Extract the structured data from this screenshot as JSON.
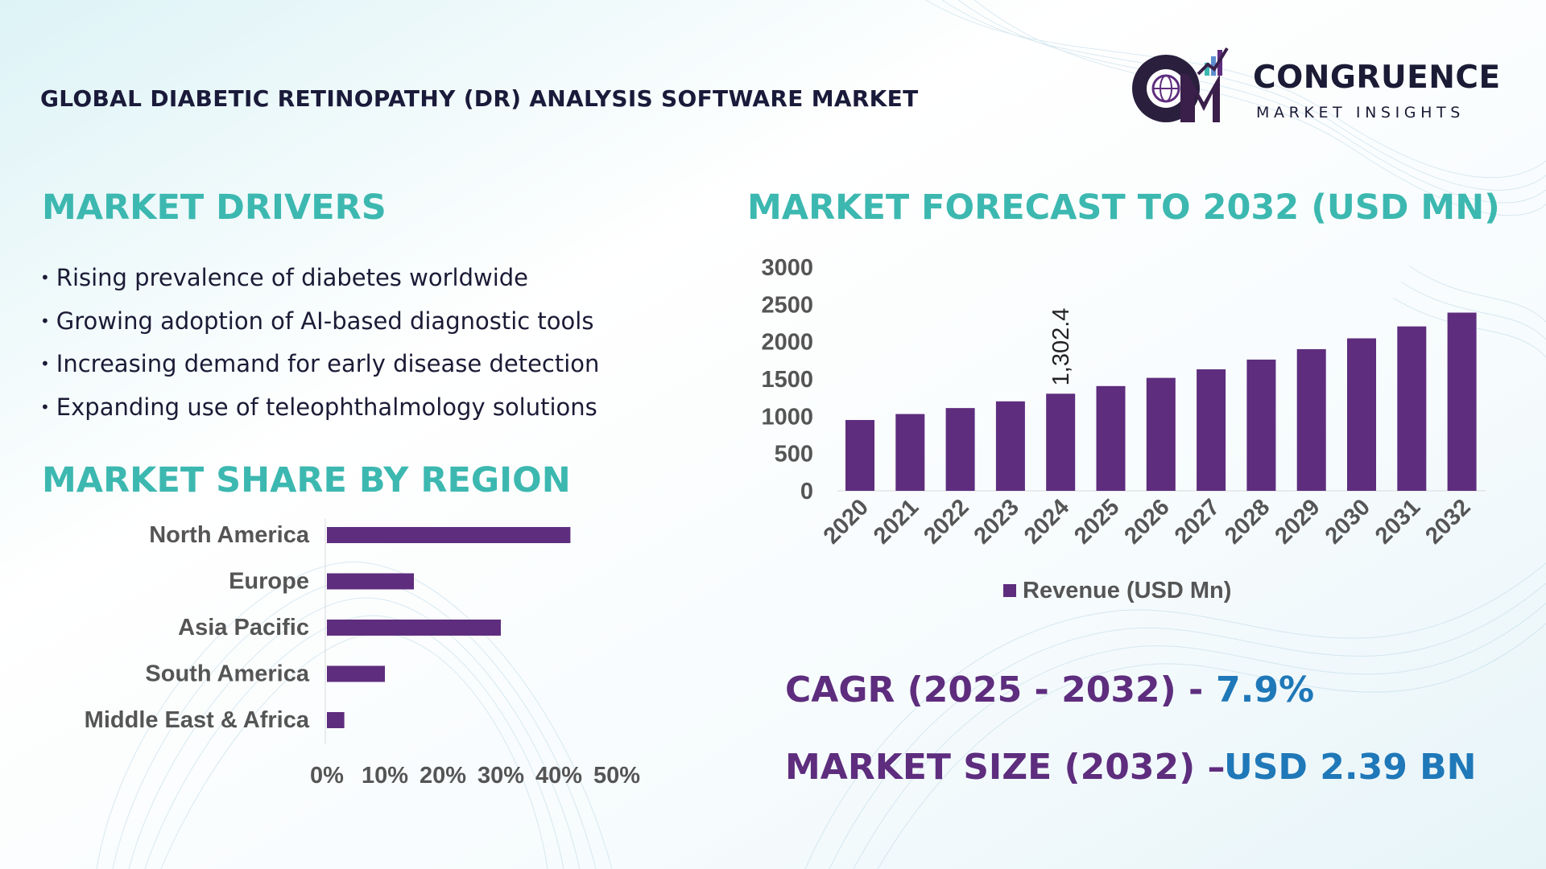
{
  "header": {
    "title": "GLOBAL DIABETIC RETINOPATHY (DR) ANALYSIS SOFTWARE MARKET",
    "logo": {
      "monogram": "CM",
      "name": "CONGRUENCE",
      "tagline": "MARKET INSIGHTS"
    }
  },
  "drivers": {
    "heading": "MARKET DRIVERS",
    "items": [
      "Rising prevalence of diabetes worldwide",
      "Growing adoption of AI-based diagnostic tools",
      "Increasing demand for early disease detection",
      "Expanding use of teleophthalmology solutions"
    ]
  },
  "region": {
    "heading": "MARKET SHARE BY REGION"
  },
  "forecast": {
    "heading": "MARKET FORECAST TO 2032 (USD MN)"
  },
  "stats": {
    "cagr_label": "CAGR (2025 - 2032) -",
    "cagr_value": "7.9%",
    "size_label": "MARKET SIZE (2032) –",
    "size_value": "USD 2.39 BN"
  },
  "colors": {
    "bar": "#5e2d7e",
    "heading": "#3cb8b0",
    "title": "#1b1b36",
    "stat_value": "#1f78b8",
    "axis_text": "#555555"
  },
  "chart_data": [
    {
      "type": "bar",
      "orientation": "horizontal",
      "title": "MARKET SHARE BY REGION",
      "categories": [
        "North America",
        "Europe",
        "Asia Pacific",
        "South America",
        "Middle East & Africa"
      ],
      "values": [
        42,
        15,
        30,
        10,
        3
      ],
      "unit": "%",
      "xlim": [
        0,
        50
      ],
      "xticks": [
        "0%",
        "10%",
        "20%",
        "30%",
        "40%",
        "50%"
      ],
      "grid": false
    },
    {
      "type": "bar",
      "title": "MARKET FORECAST TO 2032 (USD MN)",
      "categories": [
        "2020",
        "2021",
        "2022",
        "2023",
        "2024",
        "2025",
        "2026",
        "2027",
        "2028",
        "2029",
        "2030",
        "2031",
        "2032"
      ],
      "series": [
        {
          "name": "Revenue (USD Mn)",
          "values": [
            950,
            1030,
            1110,
            1200,
            1302.4,
            1405,
            1515,
            1630,
            1760,
            1900,
            2045,
            2205,
            2390
          ]
        }
      ],
      "ylim": [
        0,
        3000
      ],
      "yticks": [
        "0",
        "500",
        "1000",
        "1500",
        "2000",
        "2500",
        "3000"
      ],
      "annotations": [
        {
          "category": "2024",
          "text": "1,302.4"
        }
      ],
      "legend": "bottom",
      "grid": false
    }
  ]
}
